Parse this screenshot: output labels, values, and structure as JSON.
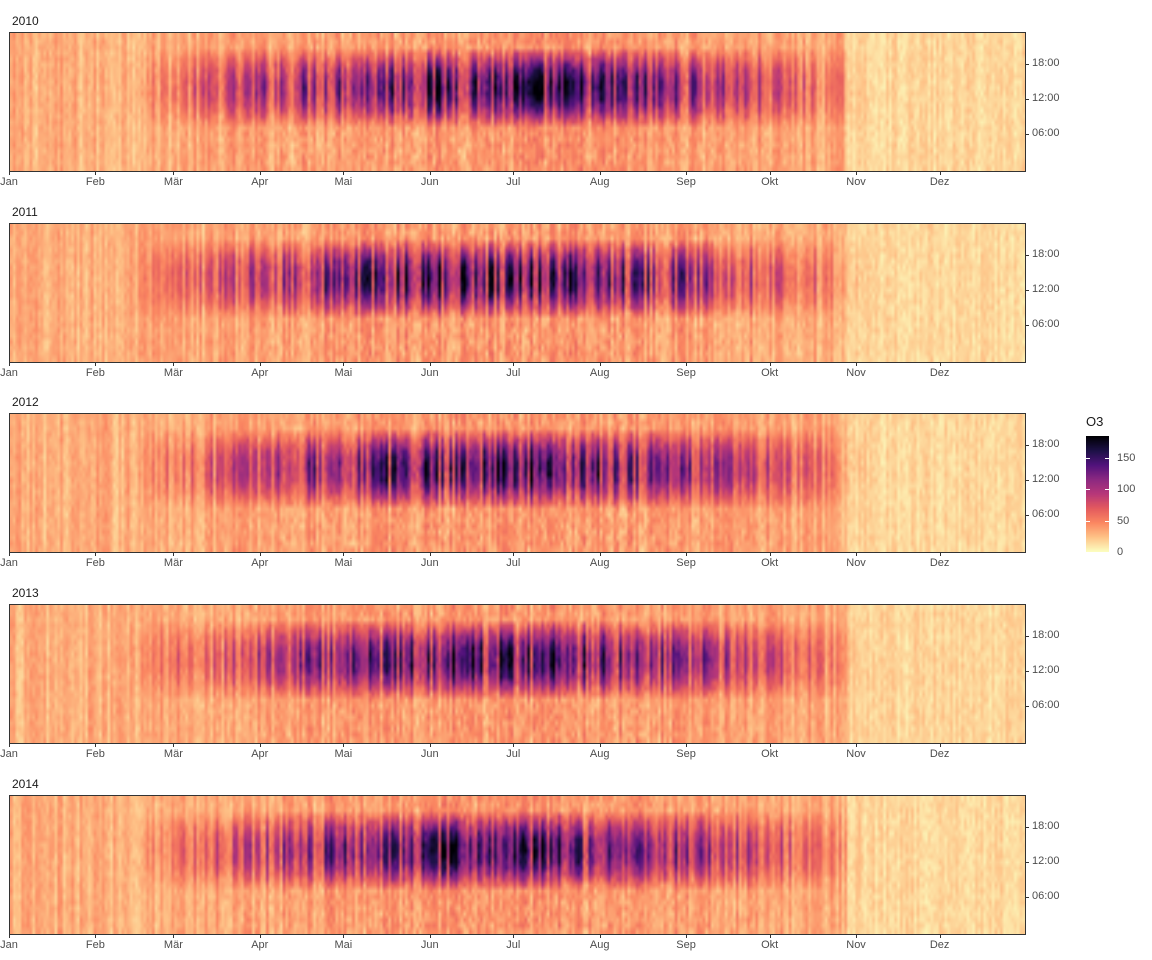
{
  "chart_data": {
    "type": "heatmap",
    "description_axes": {
      "x": "month",
      "y": "hour of day"
    },
    "months": [
      "Jan",
      "Feb",
      "Mär",
      "Apr",
      "Mai",
      "Jun",
      "Jul",
      "Aug",
      "Sep",
      "Okt",
      "Nov",
      "Dez"
    ],
    "hour_ticks": [
      "18:00",
      "12:00",
      "06:00"
    ],
    "panels": [
      {
        "year": "2010"
      },
      {
        "year": "2011"
      },
      {
        "year": "2012"
      },
      {
        "year": "2013"
      },
      {
        "year": "2014"
      }
    ],
    "legend": {
      "title": "O3",
      "ticks": [
        "150",
        "100",
        "50",
        "0"
      ],
      "range": [
        0,
        185
      ],
      "colors": [
        "#fcfdbf",
        "#fec287",
        "#fb8761",
        "#e45a5e",
        "#b73779",
        "#8c2981",
        "#51127c",
        "#1d1147",
        "#000004"
      ]
    }
  }
}
